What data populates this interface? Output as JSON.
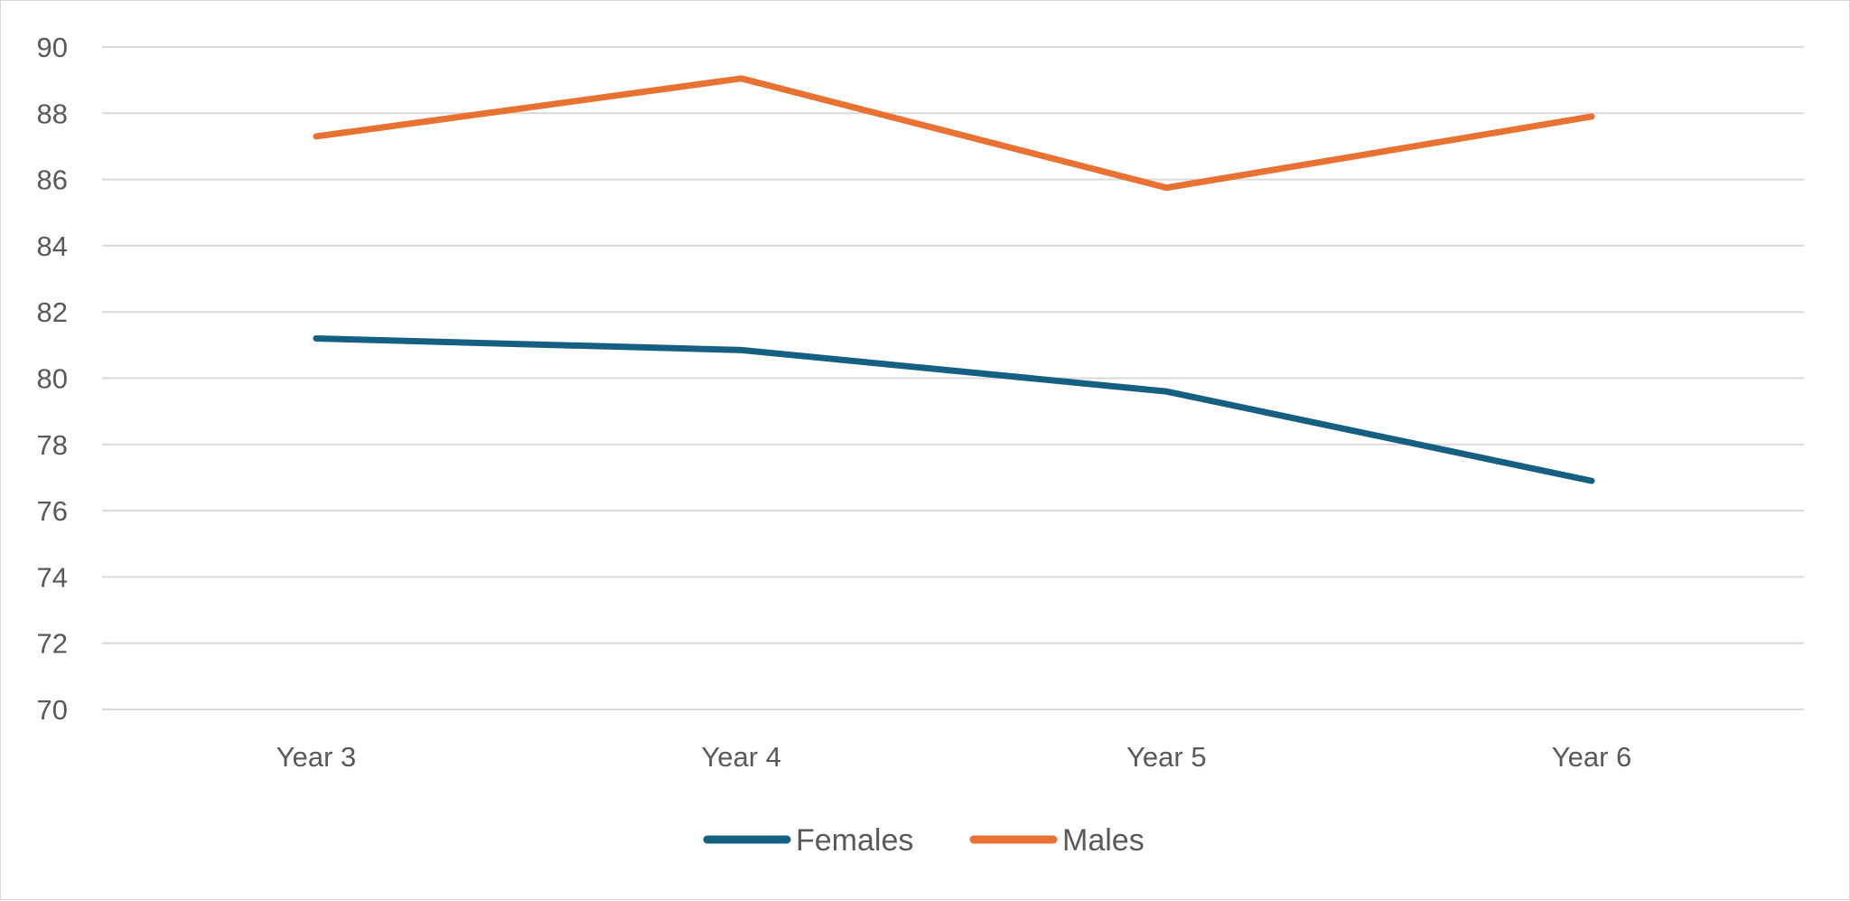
{
  "chart_data": {
    "type": "line",
    "title": "",
    "xlabel": "",
    "ylabel": "",
    "categories": [
      "Year 3",
      "Year 4",
      "Year 5",
      "Year 6"
    ],
    "ylim": [
      70,
      90
    ],
    "ytick_step": 2,
    "grid": true,
    "legend_position": "bottom",
    "series": [
      {
        "name": "Females",
        "color": "#156082",
        "values": [
          81.2,
          80.85,
          79.6,
          76.9
        ]
      },
      {
        "name": "Males",
        "color": "#E97132",
        "values": [
          87.3,
          89.05,
          85.75,
          87.9
        ]
      }
    ]
  }
}
